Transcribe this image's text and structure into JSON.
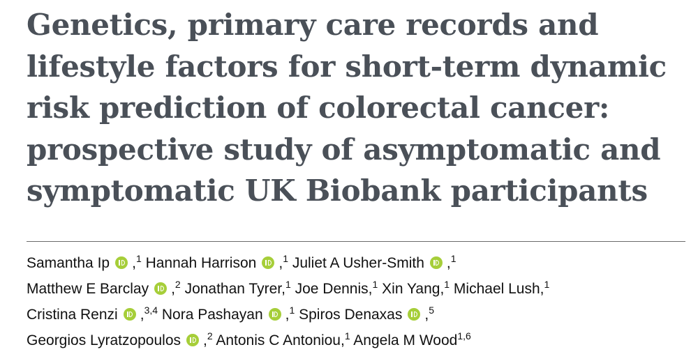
{
  "title_lines": [
    "Genetics, primary care records and",
    "lifestyle factors for short-term dynamic",
    "risk prediction of colorectal cancer:",
    "prospective study of asymptomatic and",
    "symptomatic UK Biobank participants"
  ],
  "author_lines": [
    [
      {
        "name": "Samantha Ip",
        "orcid": true,
        "separator": ",",
        "affiliations": "1"
      },
      {
        "name": "Hannah Harrison",
        "orcid": true,
        "separator": ",",
        "affiliations": "1"
      },
      {
        "name": "Juliet A Usher-Smith",
        "orcid": true,
        "separator": ",",
        "affiliations": "1"
      }
    ],
    [
      {
        "name": "Matthew E Barclay",
        "orcid": true,
        "separator": ",",
        "affiliations": "2"
      },
      {
        "name": "Jonathan Tyrer",
        "orcid": false,
        "separator": ",",
        "affiliations": "1"
      },
      {
        "name": "Joe Dennis",
        "orcid": false,
        "separator": ",",
        "affiliations": "1"
      },
      {
        "name": "Xin Yang",
        "orcid": false,
        "separator": ",",
        "affiliations": "1"
      },
      {
        "name": "Michael Lush",
        "orcid": false,
        "separator": ",",
        "affiliations": "1"
      }
    ],
    [
      {
        "name": "Cristina Renzi",
        "orcid": true,
        "separator": ",",
        "affiliations": "3,4"
      },
      {
        "name": "Nora Pashayan",
        "orcid": true,
        "separator": ",",
        "affiliations": "1"
      },
      {
        "name": "Spiros Denaxas",
        "orcid": true,
        "separator": ",",
        "affiliations": "5"
      }
    ],
    [
      {
        "name": "Georgios Lyratzopoulos",
        "orcid": true,
        "separator": ",",
        "affiliations": "2"
      },
      {
        "name": "Antonis C Antoniou",
        "orcid": false,
        "separator": ",",
        "affiliations": "1"
      },
      {
        "name": "Angela M Wood",
        "orcid": false,
        "affiliations": "1,6"
      }
    ]
  ]
}
